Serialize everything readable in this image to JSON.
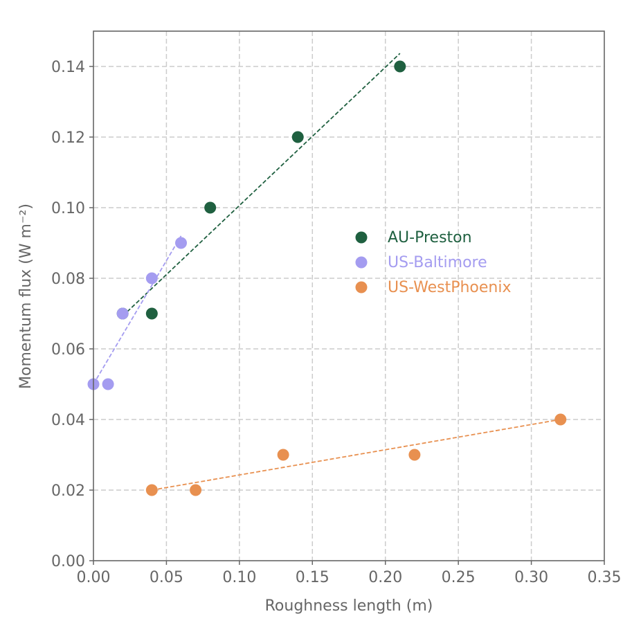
{
  "chart_data": {
    "type": "scatter",
    "title": "",
    "xlabel": "Roughness length (m)",
    "ylabel": "Momentum flux (W m⁻²)",
    "xlim": [
      0.0,
      0.35
    ],
    "ylim": [
      0.0,
      0.15
    ],
    "x_ticks": [
      "0.00",
      "0.05",
      "0.10",
      "0.15",
      "0.20",
      "0.25",
      "0.30",
      "0.35"
    ],
    "y_ticks": [
      "0.00",
      "0.02",
      "0.04",
      "0.06",
      "0.08",
      "0.10",
      "0.12",
      "0.14"
    ],
    "grid": true,
    "legend_position": "center-right",
    "series": [
      {
        "name": "AU-Preston",
        "color": "#1f6040",
        "points": [
          [
            0.02,
            0.07
          ],
          [
            0.04,
            0.07
          ],
          [
            0.08,
            0.1
          ],
          [
            0.14,
            0.12
          ],
          [
            0.21,
            0.14
          ]
        ],
        "trend": [
          [
            0.02,
            0.0693
          ],
          [
            0.21,
            0.1437
          ]
        ]
      },
      {
        "name": "US-Baltimore",
        "color": "#a49cf0",
        "points": [
          [
            0.0,
            0.05
          ],
          [
            0.01,
            0.05
          ],
          [
            0.02,
            0.07
          ],
          [
            0.04,
            0.08
          ],
          [
            0.06,
            0.09
          ]
        ],
        "trend": [
          [
            0.0,
            0.05
          ],
          [
            0.06,
            0.092
          ]
        ]
      },
      {
        "name": "US-WestPhoenix",
        "color": "#e89050",
        "points": [
          [
            0.04,
            0.02
          ],
          [
            0.07,
            0.02
          ],
          [
            0.13,
            0.03
          ],
          [
            0.22,
            0.03
          ],
          [
            0.32,
            0.04
          ]
        ],
        "trend": [
          [
            0.04,
            0.02
          ],
          [
            0.32,
            0.04
          ]
        ]
      }
    ]
  }
}
